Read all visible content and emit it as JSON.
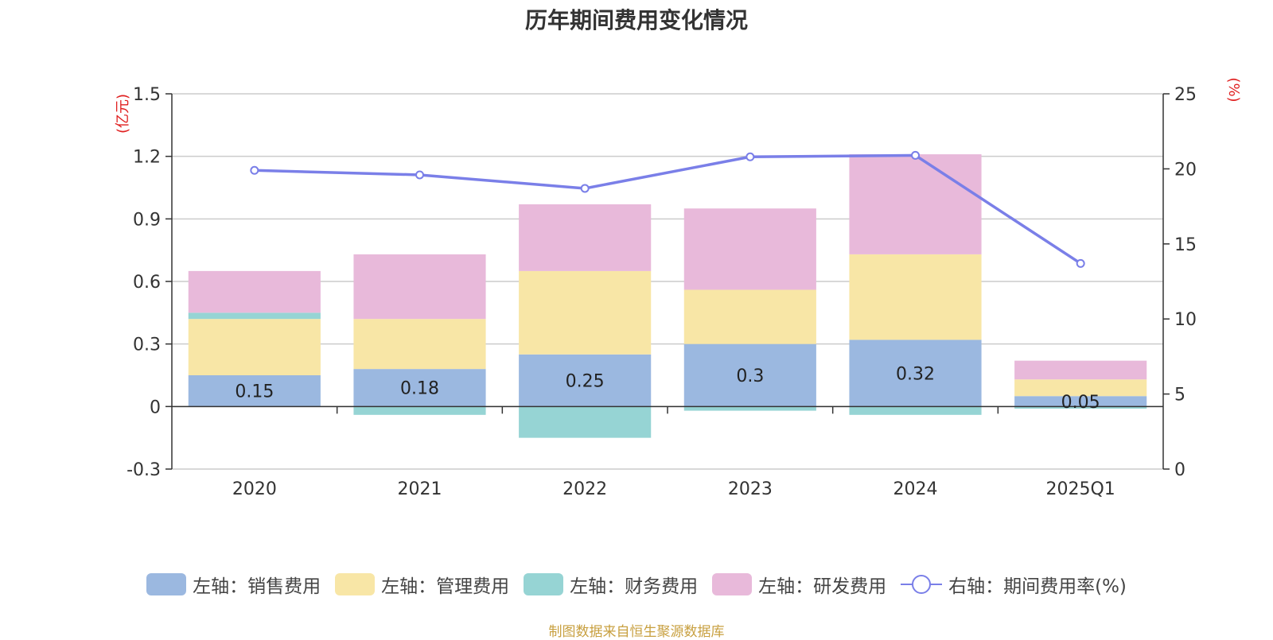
{
  "title": "历年期间费用变化情况",
  "source": "制图数据来自恒生聚源数据库",
  "chart_data": {
    "type": "bar",
    "categories": [
      "2020",
      "2021",
      "2022",
      "2023",
      "2024",
      "2025Q1"
    ],
    "left_axis": {
      "unit": "(亿元)",
      "ylim": [
        -0.3,
        1.5
      ],
      "ticks": [
        "1.5",
        "1.2",
        "0.9",
        "0.6",
        "0.3",
        "0",
        "-0.3"
      ]
    },
    "right_axis": {
      "unit": "(%)",
      "ylim": [
        0,
        25
      ],
      "ticks": [
        "25",
        "20",
        "15",
        "10",
        "5",
        "0"
      ]
    },
    "series": [
      {
        "name": "左轴：销售费用",
        "color": "#9bb8e0",
        "values": [
          0.15,
          0.18,
          0.25,
          0.3,
          0.32,
          0.05
        ],
        "labels": [
          "0.15",
          "0.18",
          "0.25",
          "0.3",
          "0.32",
          "0.05"
        ]
      },
      {
        "name": "左轴：管理费用",
        "color": "#f8e6a6",
        "values": [
          0.27,
          0.24,
          0.4,
          0.26,
          0.41,
          0.08
        ]
      },
      {
        "name": "左轴：财务费用",
        "color": "#96d4d4",
        "values": [
          0.03,
          -0.04,
          -0.15,
          -0.02,
          -0.04,
          -0.01
        ]
      },
      {
        "name": "左轴：研发费用",
        "color": "#e8b9da",
        "values": [
          0.2,
          0.31,
          0.32,
          0.39,
          0.48,
          0.09
        ]
      }
    ],
    "line_series": {
      "name": "右轴：期间费用率(%)",
      "color": "#7a7fe8",
      "values": [
        19.9,
        19.6,
        18.7,
        20.8,
        20.9,
        13.7
      ]
    },
    "grid": true,
    "legend_position": "bottom"
  }
}
